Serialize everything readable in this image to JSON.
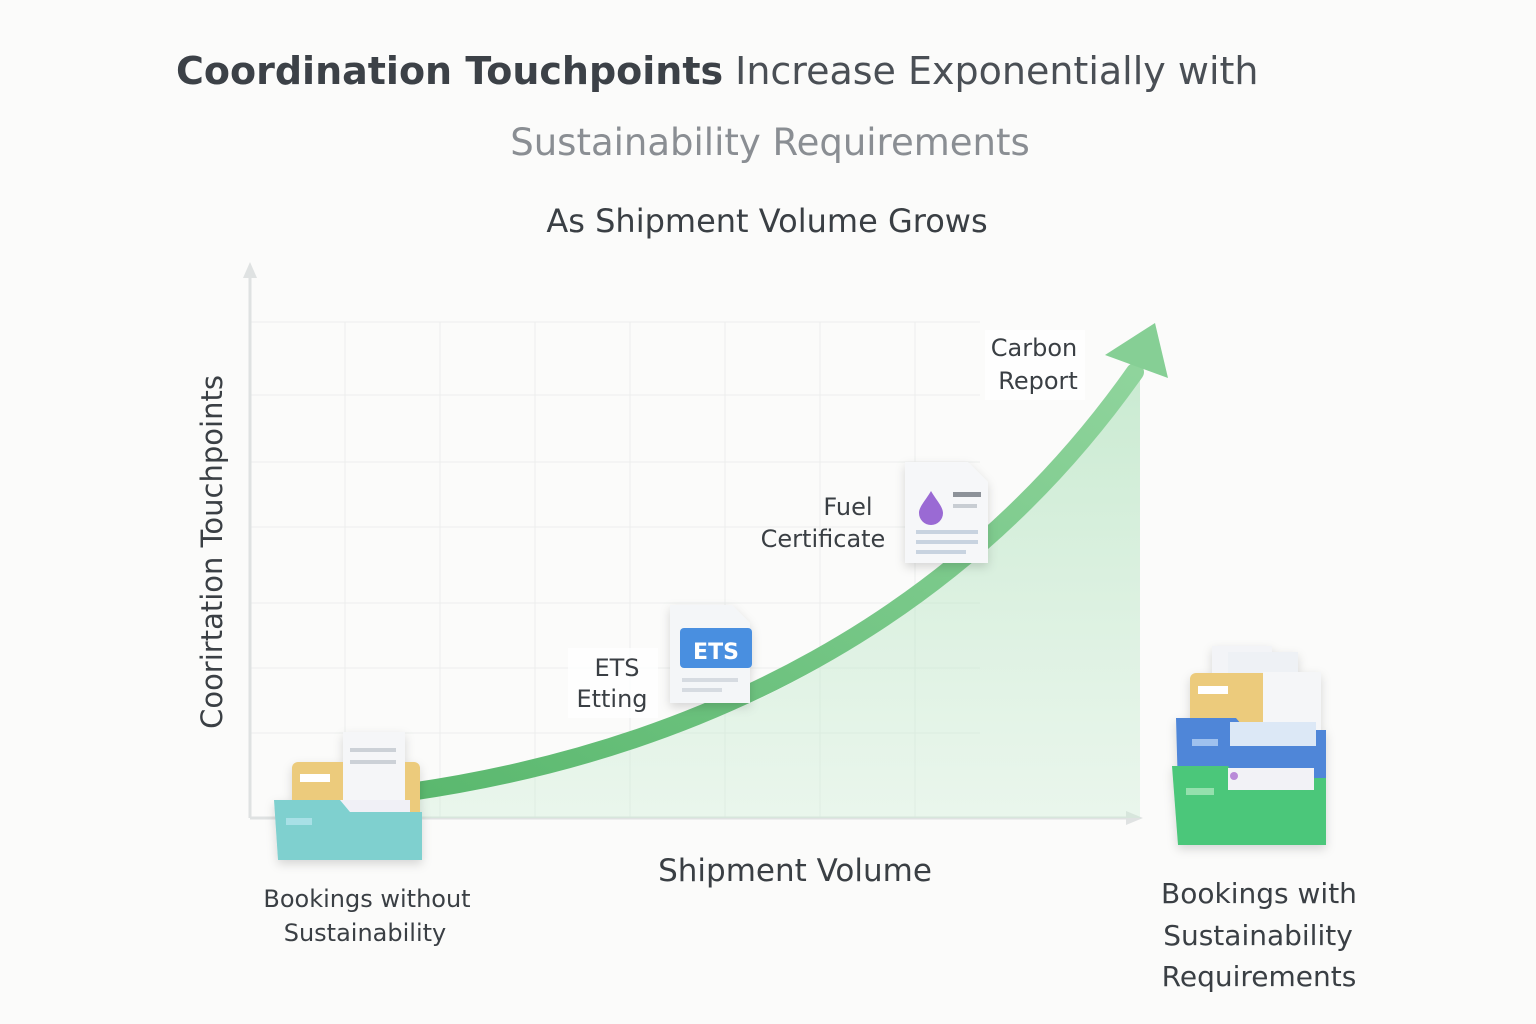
{
  "header": {
    "title_bold": "Coordination Touchpoints",
    "title_rest": "Increase Exponentially with",
    "title_line2": "Sustainability Requirements",
    "subtitle": "As Shipment Volume Grows"
  },
  "axes": {
    "y_label": "Coorirtation Touchpoints",
    "x_label": "Shipment Volume"
  },
  "milestones": [
    {
      "lines": [
        "ETS",
        "Etting"
      ],
      "badge": "ETS"
    },
    {
      "lines": [
        "Fuel",
        "Certificate"
      ]
    },
    {
      "lines": [
        "Carbon",
        "Report"
      ]
    }
  ],
  "endpoints": {
    "start": {
      "lines": [
        "Bookings without",
        "Sustainability"
      ]
    },
    "end": {
      "lines": [
        "Bookings with",
        "Sustainability",
        "Requirements"
      ]
    }
  }
}
